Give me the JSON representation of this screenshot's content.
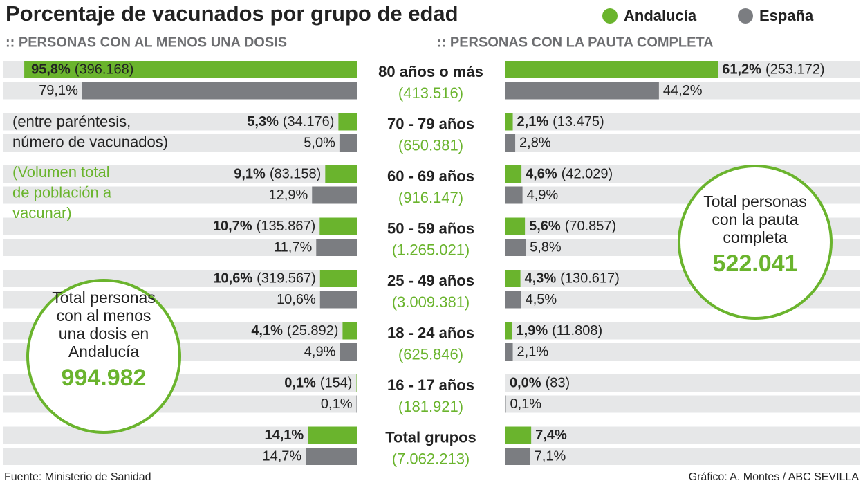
{
  "chart_data": {
    "type": "butterfly-bar",
    "title": "Porcentaje de vacunados por grupo de edad",
    "categories": [
      "80 años o más",
      "70 - 79 años",
      "60 - 69 años",
      "50 - 59 años",
      "25 - 49 años",
      "18 - 24 años",
      "16 - 17 años",
      "Total grupos"
    ],
    "populations": [
      "(413.516)",
      "(650.381)",
      "(916.147)",
      "(1.265.021)",
      "(3.009.381)",
      "(625.846)",
      "(181.921)",
      "(7.062.213)"
    ],
    "xlim": [
      0,
      100
    ],
    "panels": [
      {
        "title": ":: PERSONAS CON AL MENOS UNA DOSIS",
        "side": "left",
        "series": [
          {
            "name": "Andalucía",
            "color": "#6ab42d",
            "values": [
              95.8,
              5.3,
              9.1,
              10.7,
              10.6,
              4.1,
              0.1,
              14.1
            ],
            "value_labels": [
              "95,8%",
              "5,3%",
              "9,1%",
              "10,7%",
              "10,6%",
              "4,1%",
              "0,1%",
              "14,1%"
            ],
            "counts": [
              "(396.168)",
              "(34.176)",
              "(83.158)",
              "(135.867)",
              "(319.567)",
              "(25.892)",
              "(154)",
              null
            ]
          },
          {
            "name": "España",
            "color": "#7b7d81",
            "values": [
              79.1,
              5.0,
              12.9,
              11.7,
              10.6,
              4.9,
              0.1,
              14.7
            ],
            "value_labels": [
              "79,1%",
              "5,0%",
              "12,9%",
              "11,7%",
              "10,6%",
              "4,9%",
              "0,1%",
              "14,7%"
            ]
          }
        ],
        "total": {
          "lines": [
            "Total personas",
            "con al menos",
            "una dosis en",
            "Andalucía"
          ],
          "value": "994.982"
        }
      },
      {
        "title": ":: PERSONAS CON LA PAUTA COMPLETA",
        "side": "right",
        "series": [
          {
            "name": "Andalucía",
            "color": "#6ab42d",
            "values": [
              61.2,
              2.1,
              4.6,
              5.6,
              4.3,
              1.9,
              0.0,
              7.4
            ],
            "value_labels": [
              "61,2%",
              "2,1%",
              "4,6%",
              "5,6%",
              "4,3%",
              "1,9%",
              "0,0%",
              "7,4%"
            ],
            "counts": [
              "(253.172)",
              "(13.475)",
              "(42.029)",
              "(70.857)",
              "(130.617)",
              "(11.808)",
              "(83)",
              null
            ]
          },
          {
            "name": "España",
            "color": "#7b7d81",
            "values": [
              44.2,
              2.8,
              4.9,
              5.8,
              4.5,
              2.1,
              0.1,
              7.1
            ],
            "value_labels": [
              "44,2%",
              "2,8%",
              "4,9%",
              "5,8%",
              "4,5%",
              "2,1%",
              "0,1%",
              "7,1%"
            ]
          }
        ],
        "total": {
          "lines": [
            "Total personas",
            "con la pauta",
            "completa"
          ],
          "value": "522.041"
        }
      }
    ],
    "notes": [
      {
        "lines": [
          "(entre paréntesis,",
          "número de vacunados)"
        ],
        "color": "#222222"
      },
      {
        "lines": [
          "(Volumen total",
          "de población a",
          "vacunar)"
        ],
        "color": "#6ab42d"
      }
    ]
  },
  "footer": {
    "source": "Fuente: Ministerio de Sanidad",
    "credit": "Gráfico: A. Montes / ABC SEVILLA"
  }
}
